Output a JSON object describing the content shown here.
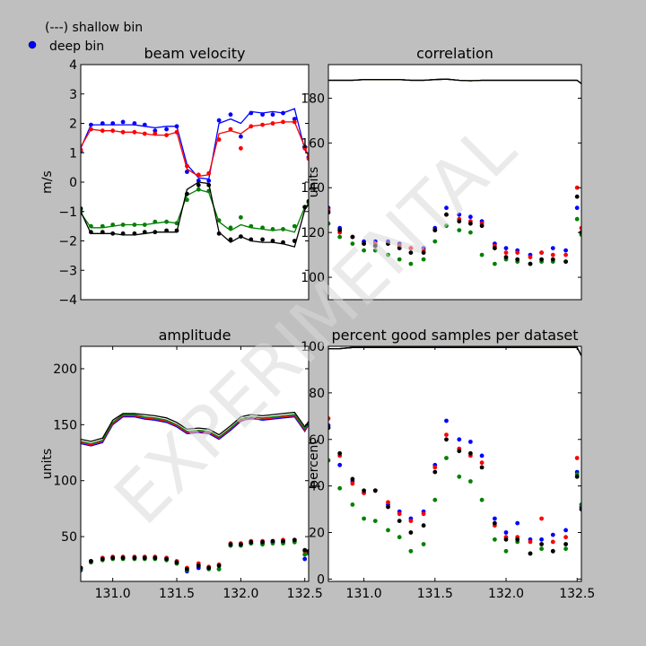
{
  "legend": {
    "shallow_label": "(---) shallow bin",
    "deep_label": "deep bin",
    "deep_marker_color": "#0000ff"
  },
  "watermark": "EXPERIMENTAL",
  "colors": {
    "beam1": "#0000ff",
    "beam2": "#ff0000",
    "beam3": "#008000",
    "beam4": "#000000",
    "background": "#bfbfbf",
    "axes_bg": "#ffffff"
  },
  "chart_data": [
    {
      "type": "line",
      "title": "beam velocity",
      "xlabel": "",
      "ylabel": "m/s",
      "xlim": [
        130.75,
        132.53
      ],
      "ylim": [
        -4,
        4
      ],
      "xticks": [],
      "yticks": [
        -4,
        -3,
        -2,
        -1,
        0,
        1,
        2,
        3,
        4
      ],
      "ytick_labels": [
        "−4",
        "−3",
        "−2",
        "−1",
        "0",
        "1",
        "2",
        "3",
        "4"
      ],
      "x": [
        130.75,
        130.83,
        130.92,
        131.0,
        131.08,
        131.17,
        131.25,
        131.33,
        131.42,
        131.5,
        131.58,
        131.67,
        131.75,
        131.83,
        131.92,
        132.0,
        132.08,
        132.17,
        132.25,
        132.33,
        132.42,
        132.5,
        132.53
      ],
      "series": [
        {
          "line": [
            1.15,
            1.95,
            1.95,
            1.95,
            1.95,
            1.95,
            1.9,
            1.85,
            1.9,
            1.9,
            0.6,
            0.15,
            0.1,
            2.0,
            2.15,
            2.0,
            2.4,
            2.35,
            2.4,
            2.35,
            2.5,
            1.1,
            0.9
          ],
          "points": [
            1.05,
            1.95,
            2.0,
            2.0,
            2.05,
            2.0,
            1.95,
            1.75,
            1.8,
            1.9,
            0.35,
            0.05,
            0.05,
            2.1,
            2.3,
            1.55,
            2.35,
            2.3,
            2.3,
            2.35,
            2.15,
            1.2,
            0.85
          ]
        },
        {
          "line": [
            1.2,
            1.8,
            1.75,
            1.75,
            1.7,
            1.7,
            1.65,
            1.6,
            1.6,
            1.7,
            0.45,
            0.2,
            0.25,
            1.65,
            1.75,
            1.65,
            1.9,
            1.95,
            2.0,
            2.05,
            2.05,
            1.2,
            0.85
          ],
          "points": [
            1.1,
            1.8,
            1.75,
            1.75,
            1.7,
            1.7,
            1.65,
            1.65,
            1.6,
            1.7,
            0.55,
            0.25,
            0.3,
            1.45,
            1.8,
            1.15,
            1.9,
            1.95,
            2.0,
            2.05,
            2.05,
            1.15,
            0.8
          ]
        },
        {
          "line": [
            -1.05,
            -1.55,
            -1.55,
            -1.5,
            -1.45,
            -1.45,
            -1.45,
            -1.4,
            -1.35,
            -1.4,
            -0.45,
            -0.25,
            -0.35,
            -1.35,
            -1.65,
            -1.45,
            -1.55,
            -1.6,
            -1.65,
            -1.6,
            -1.7,
            -0.85,
            -0.75
          ],
          "points": [
            -1.0,
            -1.5,
            -1.5,
            -1.45,
            -1.45,
            -1.45,
            -1.45,
            -1.35,
            -1.35,
            -1.4,
            -0.6,
            -0.25,
            -0.3,
            -1.3,
            -1.55,
            -1.2,
            -1.5,
            -1.55,
            -1.6,
            -1.6,
            -1.5,
            -0.85,
            -0.7
          ]
        },
        {
          "line": [
            -1.0,
            -1.75,
            -1.75,
            -1.75,
            -1.8,
            -1.8,
            -1.75,
            -1.7,
            -1.7,
            -1.7,
            -0.25,
            0.0,
            -0.05,
            -1.7,
            -2.05,
            -1.85,
            -2.0,
            -2.05,
            -2.05,
            -2.1,
            -2.2,
            -0.95,
            -0.75
          ],
          "points": [
            -0.9,
            -1.7,
            -1.7,
            -1.75,
            -1.75,
            -1.75,
            -1.7,
            -1.7,
            -1.65,
            -1.65,
            -0.4,
            -0.1,
            -0.1,
            -1.75,
            -1.95,
            -1.85,
            -1.95,
            -1.95,
            -2.0,
            -2.05,
            -2.0,
            -0.85,
            -0.65
          ]
        }
      ]
    },
    {
      "type": "line",
      "title": "correlation",
      "xlabel": "",
      "ylabel": "units",
      "xlim": [
        130.75,
        132.53
      ],
      "ylim": [
        90,
        195
      ],
      "xticks": [],
      "yticks": [
        100,
        120,
        140,
        160,
        180
      ],
      "ytick_labels": [
        "100",
        "120",
        "140",
        "160",
        "180"
      ],
      "x": [
        130.75,
        130.83,
        130.92,
        131.0,
        131.08,
        131.17,
        131.25,
        131.33,
        131.42,
        131.5,
        131.58,
        131.67,
        131.75,
        131.83,
        131.92,
        132.0,
        132.08,
        132.17,
        132.25,
        132.33,
        132.42,
        132.5,
        132.53
      ],
      "series": [
        {
          "line": [
            188,
            188,
            188,
            188.3,
            188.3,
            188.3,
            188.3,
            188,
            188,
            188.3,
            188.5,
            188,
            187.8,
            188,
            188,
            188,
            188,
            188,
            188,
            188,
            188,
            188,
            186.5
          ],
          "points": [
            131,
            122,
            118,
            116,
            116,
            116,
            115,
            113,
            113,
            122,
            131,
            128,
            127,
            125,
            115,
            113,
            112,
            110,
            111,
            113,
            112,
            131,
            120
          ]
        },
        {
          "line": [
            188,
            188,
            188,
            188.3,
            188.3,
            188.3,
            188.3,
            188,
            188,
            188.3,
            188.5,
            188,
            187.8,
            188,
            188,
            188,
            188,
            188,
            188,
            188,
            188,
            188,
            186.5
          ],
          "points": [
            130,
            120,
            118,
            115,
            115,
            115,
            114,
            113,
            112,
            121,
            128,
            126,
            125,
            124,
            114,
            111,
            111,
            109,
            111,
            110,
            110,
            140,
            122
          ]
        },
        {
          "line": [
            188,
            188,
            188,
            188.3,
            188.3,
            188.3,
            188.3,
            188,
            188,
            188.3,
            188.5,
            188,
            187.8,
            188,
            188,
            188,
            188,
            188,
            188,
            188,
            188,
            188,
            186.5
          ],
          "points": [
            124,
            118,
            115,
            112,
            112,
            110,
            108,
            106,
            108,
            116,
            123,
            121,
            120,
            110,
            106,
            108,
            107,
            106,
            107,
            107,
            107,
            126,
            119
          ]
        },
        {
          "line": [
            188,
            188,
            188,
            188.3,
            188.3,
            188.3,
            188.3,
            188,
            188,
            188.3,
            188.5,
            188,
            187.8,
            188,
            188,
            188,
            188,
            188,
            188,
            188,
            188,
            188,
            186.5
          ],
          "points": [
            129,
            121,
            118,
            115,
            114,
            115,
            113,
            111,
            111,
            121,
            128,
            125,
            124,
            123,
            113,
            109,
            108,
            106,
            108,
            108,
            107,
            136,
            120
          ]
        }
      ]
    },
    {
      "type": "line",
      "title": "amplitude",
      "xlabel": "",
      "ylabel": "units",
      "xlim": [
        130.75,
        132.53
      ],
      "ylim": [
        10,
        220
      ],
      "xticks": [
        131.0,
        131.5,
        132.0,
        132.5
      ],
      "xtick_labels": [
        "131.0",
        "131.5",
        "132.0",
        "132.5"
      ],
      "yticks": [
        50,
        100,
        150,
        200
      ],
      "ytick_labels": [
        "50",
        "100",
        "150",
        "200"
      ],
      "x": [
        130.75,
        130.83,
        130.92,
        131.0,
        131.08,
        131.17,
        131.25,
        131.33,
        131.42,
        131.5,
        131.58,
        131.67,
        131.75,
        131.83,
        131.92,
        132.0,
        132.08,
        132.17,
        132.25,
        132.33,
        132.42,
        132.5,
        132.53
      ],
      "series": [
        {
          "line": [
            133,
            131,
            134,
            150,
            157,
            157,
            155,
            154,
            152,
            148,
            142,
            143,
            142,
            137,
            145,
            153,
            156,
            154,
            155,
            156,
            157,
            144,
            150
          ],
          "points": [
            20,
            28,
            30,
            31,
            31,
            31,
            31,
            31,
            30,
            26,
            19,
            22,
            22,
            21,
            42,
            43,
            44,
            44,
            45,
            45,
            46,
            30,
            35
          ]
        },
        {
          "line": [
            134,
            132,
            135,
            151,
            158,
            158,
            156,
            155,
            153,
            149,
            143,
            144,
            143,
            138,
            146,
            154,
            155,
            155,
            156,
            157,
            158,
            145,
            151
          ],
          "points": [
            22,
            28,
            31,
            32,
            32,
            32,
            32,
            32,
            31,
            28,
            22,
            26,
            23,
            25,
            44,
            44,
            46,
            46,
            46,
            47,
            47,
            37,
            36
          ]
        },
        {
          "line": [
            135,
            133,
            136,
            152,
            159,
            159,
            157,
            156,
            154,
            150,
            144,
            145,
            144,
            139,
            147,
            155,
            157,
            156,
            157,
            158,
            159,
            146,
            152
          ],
          "points": [
            21,
            27,
            29,
            30,
            30,
            30,
            30,
            30,
            29,
            26,
            20,
            24,
            21,
            21,
            42,
            42,
            44,
            43,
            44,
            44,
            45,
            34,
            36
          ]
        },
        {
          "line": [
            137,
            135,
            138,
            154,
            160,
            160,
            159,
            158,
            156,
            152,
            146,
            147,
            146,
            141,
            149,
            157,
            159,
            158,
            159,
            160,
            161,
            148,
            153
          ],
          "points": [
            22,
            28,
            30,
            31,
            31,
            31,
            31,
            31,
            30,
            27,
            21,
            24,
            22,
            24,
            43,
            43,
            45,
            45,
            46,
            46,
            47,
            38,
            37
          ]
        }
      ]
    },
    {
      "type": "line",
      "title": "percent good samples per dataset",
      "xlabel": "",
      "ylabel": "percent",
      "xlim": [
        130.75,
        132.53
      ],
      "ylim": [
        -1,
        100
      ],
      "xticks": [
        131.0,
        131.5,
        132.0,
        132.5
      ],
      "xtick_labels": [
        "131.0",
        "131.5",
        "132.0",
        "132.5"
      ],
      "yticks": [
        0,
        20,
        40,
        60,
        80,
        100
      ],
      "ytick_labels": [
        "0",
        "20",
        "40",
        "60",
        "80",
        "100"
      ],
      "x": [
        130.75,
        130.83,
        130.92,
        131.0,
        131.08,
        131.17,
        131.25,
        131.33,
        131.42,
        131.5,
        131.58,
        131.67,
        131.75,
        131.83,
        131.92,
        132.0,
        132.08,
        132.17,
        132.25,
        132.33,
        132.42,
        132.5,
        132.53
      ],
      "series": [
        {
          "line": [
            99,
            99,
            99.5,
            99.5,
            99.5,
            99.5,
            99.5,
            99.5,
            99.5,
            99.5,
            99.5,
            99.5,
            99.5,
            99.5,
            99.5,
            99.5,
            99.5,
            99.5,
            99.5,
            99.5,
            99.5,
            99.5,
            96
          ],
          "points": [
            66,
            49,
            42,
            37,
            38,
            32,
            29,
            26,
            29,
            49,
            68,
            60,
            59,
            53,
            26,
            20,
            24,
            17,
            17,
            19,
            21,
            46,
            31
          ]
        },
        {
          "line": [
            99,
            99,
            99.5,
            99.5,
            99.5,
            99.5,
            99.5,
            99.5,
            99.5,
            99.5,
            99.5,
            99.5,
            99.5,
            99.5,
            99.5,
            99.5,
            99.5,
            99.5,
            99.5,
            99.5,
            99.5,
            99.5,
            96
          ],
          "points": [
            69,
            53,
            41,
            37,
            38,
            33,
            28,
            25,
            28,
            48,
            62,
            56,
            53,
            50,
            23,
            18,
            18,
            16,
            26,
            16,
            18,
            52,
            32
          ]
        },
        {
          "line": [
            99,
            99,
            99.5,
            99.5,
            99.5,
            99.5,
            99.5,
            99.5,
            99.5,
            99.5,
            99.5,
            99.5,
            99.5,
            99.5,
            99.5,
            99.5,
            99.5,
            99.5,
            99.5,
            99.5,
            99.5,
            99.5,
            96
          ],
          "points": [
            51,
            39,
            32,
            26,
            25,
            21,
            18,
            12,
            15,
            34,
            52,
            44,
            42,
            34,
            17,
            12,
            16,
            11,
            13,
            12,
            13,
            45,
            32
          ]
        },
        {
          "line": [
            99,
            99,
            99.5,
            99.5,
            99.5,
            99.5,
            99.5,
            99.5,
            99.5,
            99.5,
            99.5,
            99.5,
            99.5,
            99.5,
            99.5,
            99.5,
            99.5,
            99.5,
            99.5,
            99.5,
            99.5,
            99.5,
            96
          ],
          "points": [
            65,
            54,
            43,
            38,
            38,
            31,
            25,
            20,
            23,
            46,
            60,
            55,
            54,
            48,
            24,
            17,
            17,
            11,
            15,
            12,
            15,
            44,
            30
          ]
        }
      ]
    }
  ]
}
